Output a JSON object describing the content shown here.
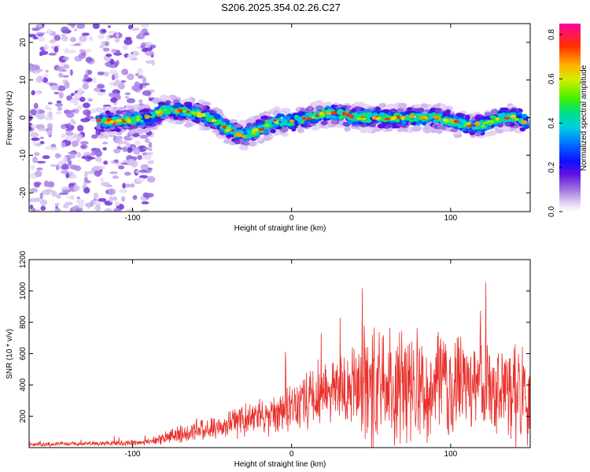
{
  "title": "S206.2025.354.02.26.C27",
  "chart_data": [
    {
      "type": "heatmap",
      "xlabel": "Height of straight line (km)",
      "ylabel": "Frequency (Hz)",
      "xlim": [
        -165,
        150
      ],
      "ylim": [
        -25,
        25
      ],
      "xticks": [
        -100,
        0,
        100
      ],
      "yticks": [
        -20,
        -10,
        0,
        10,
        20
      ],
      "colorbar": {
        "label": "Normalized spectral amplitude",
        "range": [
          0,
          0.85
        ],
        "ticks": [
          "0.0",
          "0.2",
          "0.4",
          "0.6",
          "0.8"
        ]
      },
      "ridge": {
        "x": [
          -130,
          -110,
          -90,
          -80,
          -70,
          -60,
          -50,
          -40,
          -30,
          -20,
          -10,
          0,
          10,
          20,
          30,
          40,
          50,
          60,
          70,
          80,
          90,
          100,
          110,
          120,
          130,
          140,
          147
        ],
        "y": [
          -1,
          -1,
          0,
          2,
          2,
          1,
          0,
          -3,
          -5,
          -3,
          -1,
          -1,
          0,
          1,
          1,
          0,
          0,
          0,
          0,
          0,
          0,
          -1,
          -2,
          -2,
          0,
          0,
          -1
        ]
      }
    },
    {
      "type": "line",
      "xlabel": "Height of straight line (km)",
      "ylabel": "SNR (10 * v/v)",
      "xlim": [
        -165,
        150
      ],
      "ylim": [
        0,
        1200
      ],
      "xticks": [
        -100,
        0,
        100
      ],
      "yticks": [
        200,
        400,
        600,
        800,
        1000,
        1200
      ],
      "color": "#e8302b",
      "envelope": {
        "x": [
          -165,
          -130,
          -100,
          -90,
          -80,
          -70,
          -60,
          -50,
          -40,
          -30,
          -20,
          -10,
          0,
          10,
          20,
          30,
          40,
          50,
          60,
          70,
          80,
          90,
          100,
          110,
          120,
          130,
          140,
          150
        ],
        "y": [
          20,
          25,
          30,
          35,
          60,
          90,
          120,
          130,
          150,
          170,
          190,
          220,
          260,
          310,
          350,
          380,
          400,
          410,
          410,
          400,
          400,
          395,
          390,
          380,
          370,
          360,
          340,
          320
        ]
      }
    }
  ]
}
